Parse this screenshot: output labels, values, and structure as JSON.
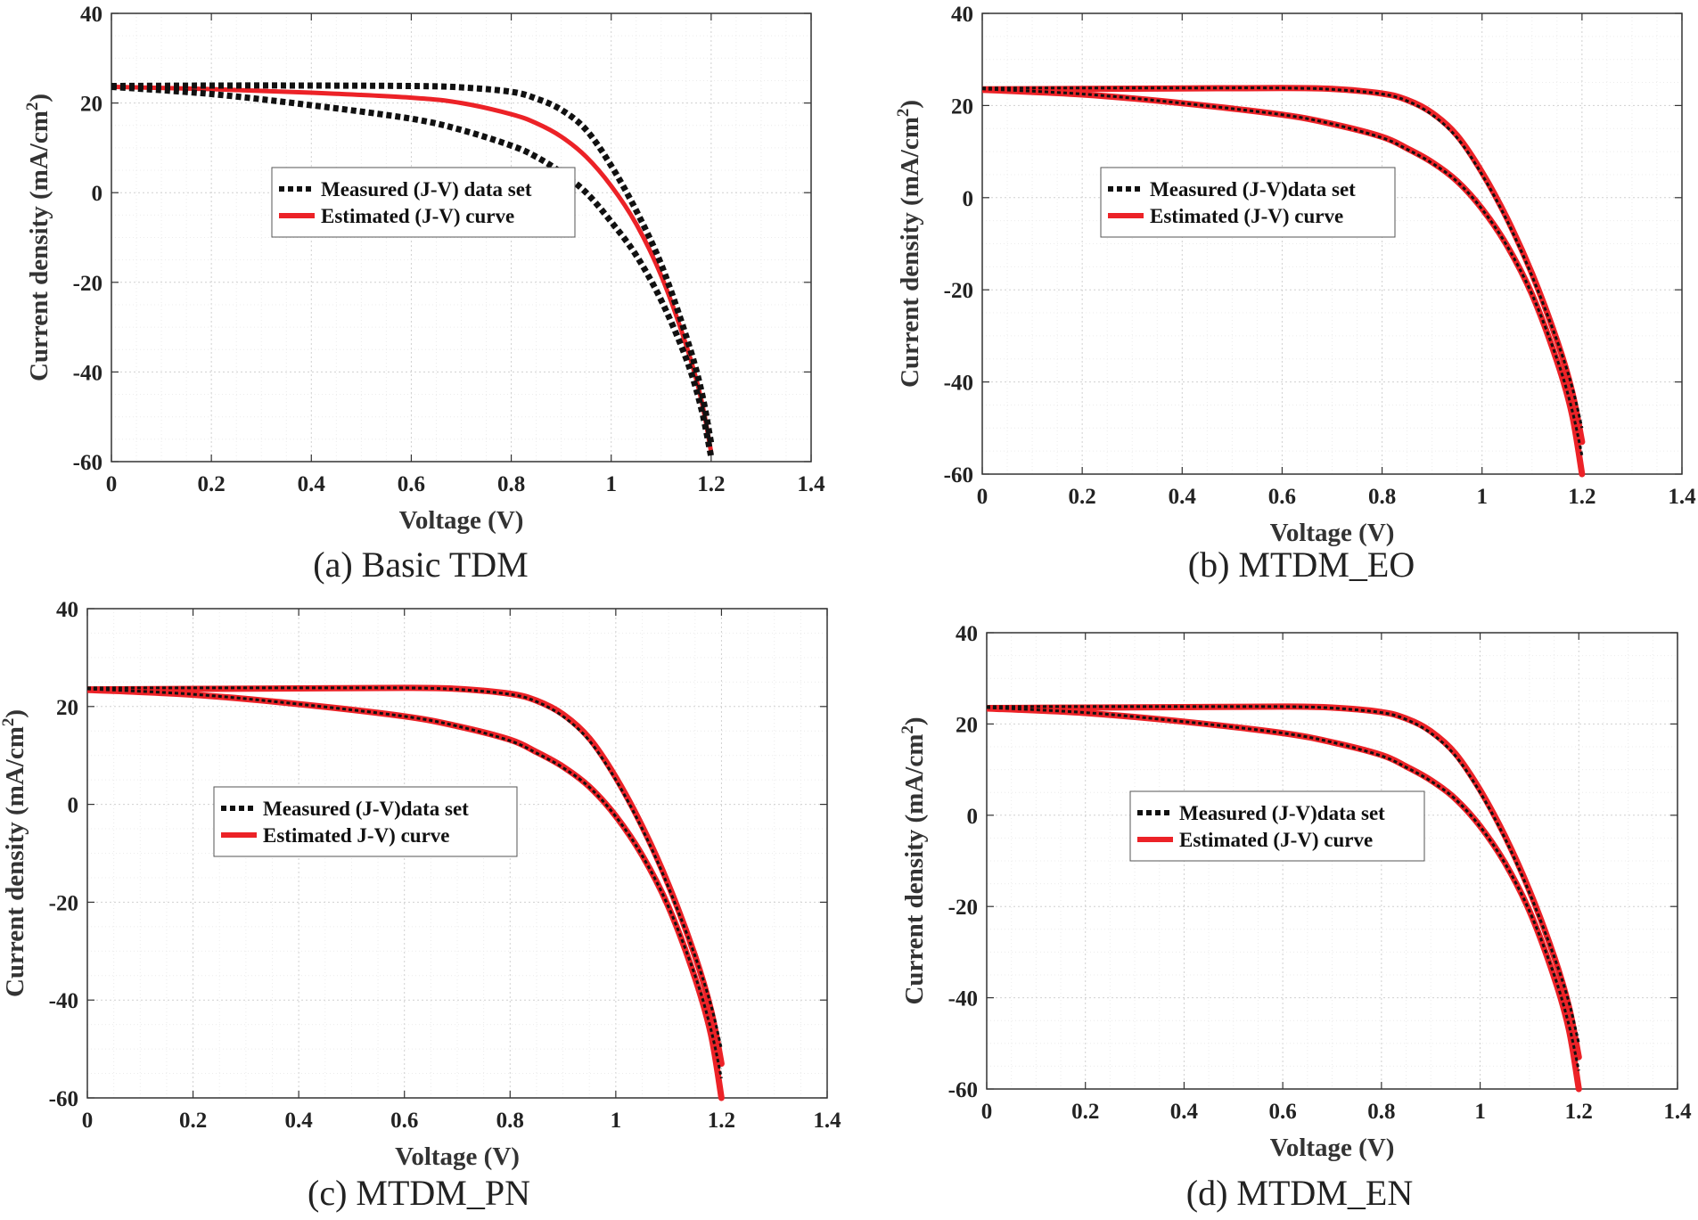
{
  "chart_data": [
    {
      "id": "a",
      "caption": "(a) Basic TDM",
      "type": "line",
      "xlabel": "Voltage (V)",
      "ylabel_main": "Current density (mA/cm",
      "ylabel_sup": "2",
      "ylabel_close": ")",
      "xlim": [
        0,
        1.4
      ],
      "ylim": [
        -60,
        40
      ],
      "xticks": [
        "0",
        "0.2",
        "0.4",
        "0.6",
        "0.8",
        "1",
        "1.2",
        "1.4"
      ],
      "yticks": [
        "40",
        "20",
        "0",
        "-20",
        "-40",
        "-60"
      ],
      "grid": true,
      "legend_position": "center",
      "legend": [
        {
          "label": "Measured (J-V) data set",
          "style": "dotted-black"
        },
        {
          "label": "Estimated (J-V) curve",
          "style": "solid-red"
        }
      ],
      "series": [
        {
          "name": "Measured upper",
          "style": "dotted-black",
          "x": [
            0,
            0.2,
            0.4,
            0.6,
            0.7,
            0.8,
            0.85,
            0.9,
            0.95,
            1.0,
            1.05,
            1.1,
            1.15,
            1.18,
            1.2
          ],
          "y": [
            23.8,
            23.9,
            23.9,
            23.8,
            23.5,
            22.5,
            21.0,
            18.5,
            14.0,
            6.0,
            -4.0,
            -16.0,
            -32.0,
            -44.0,
            -56.0
          ]
        },
        {
          "name": "Measured lower",
          "style": "dotted-black",
          "x": [
            0,
            0.2,
            0.4,
            0.6,
            0.7,
            0.8,
            0.85,
            0.9,
            0.95,
            1.0,
            1.05,
            1.1,
            1.15,
            1.18,
            1.2
          ],
          "y": [
            23.6,
            22.0,
            19.5,
            16.5,
            14.0,
            10.5,
            8.0,
            4.5,
            0.0,
            -6.5,
            -14.0,
            -24.0,
            -37.0,
            -48.0,
            -59.0
          ]
        },
        {
          "name": "Estimated",
          "style": "solid-red",
          "x": [
            0,
            0.2,
            0.4,
            0.6,
            0.7,
            0.8,
            0.85,
            0.9,
            0.95,
            1.0,
            1.05,
            1.1,
            1.15,
            1.18,
            1.2
          ],
          "y": [
            23.6,
            23.1,
            22.3,
            21.2,
            20.0,
            17.5,
            15.5,
            12.5,
            8.0,
            1.5,
            -7.0,
            -18.5,
            -34.0,
            -46.0,
            -58.0
          ]
        }
      ]
    },
    {
      "id": "b",
      "caption": "(b) MTDM_EO",
      "type": "line",
      "xlabel": "Voltage (V)",
      "ylabel_main": "Current density (mA/cm",
      "ylabel_sup": "2",
      "ylabel_close": ")",
      "xlim": [
        0,
        1.4
      ],
      "ylim": [
        -60,
        40
      ],
      "xticks": [
        "0",
        "0.2",
        "0.4",
        "0.6",
        "0.8",
        "1",
        "1.2",
        "1.4"
      ],
      "yticks": [
        "40",
        "20",
        "0",
        "-20",
        "-40",
        "-60"
      ],
      "grid": true,
      "legend_position": "center",
      "legend": [
        {
          "label": "Measured (J-V)data set",
          "style": "dotted-black"
        },
        {
          "label": "Estimated (J-V) curve",
          "style": "solid-red"
        }
      ],
      "series": [
        {
          "name": "Measured upper",
          "style": "dotted-black",
          "x": [
            0,
            0.2,
            0.4,
            0.6,
            0.7,
            0.8,
            0.85,
            0.9,
            0.95,
            1.0,
            1.05,
            1.1,
            1.15,
            1.18,
            1.2
          ],
          "y": [
            23.8,
            23.8,
            23.8,
            23.8,
            23.5,
            22.5,
            21.0,
            18.0,
            13.0,
            5.0,
            -5.0,
            -17.0,
            -31.0,
            -41.0,
            -50.0
          ]
        },
        {
          "name": "Measured lower",
          "style": "dotted-black",
          "x": [
            0,
            0.2,
            0.4,
            0.6,
            0.7,
            0.8,
            0.85,
            0.9,
            0.95,
            1.0,
            1.05,
            1.1,
            1.15,
            1.18,
            1.2
          ],
          "y": [
            23.6,
            22.5,
            20.5,
            18.0,
            16.0,
            13.0,
            10.5,
            7.5,
            3.5,
            -2.5,
            -10.5,
            -21.0,
            -35.0,
            -46.0,
            -56.0
          ]
        },
        {
          "name": "Estimated upper",
          "style": "solid-red",
          "x": [
            0,
            0.2,
            0.4,
            0.6,
            0.7,
            0.8,
            0.85,
            0.9,
            0.95,
            1.0,
            1.05,
            1.1,
            1.15,
            1.18,
            1.2
          ],
          "y": [
            23.5,
            23.6,
            23.7,
            23.8,
            23.6,
            22.6,
            21.2,
            18.4,
            13.5,
            5.5,
            -4.5,
            -16.5,
            -31.0,
            -42.0,
            -53.0
          ]
        },
        {
          "name": "Estimated lower",
          "style": "solid-red",
          "x": [
            0,
            0.2,
            0.4,
            0.6,
            0.7,
            0.8,
            0.85,
            0.9,
            0.95,
            1.0,
            1.05,
            1.1,
            1.15,
            1.18,
            1.2
          ],
          "y": [
            23.4,
            22.4,
            20.5,
            18.0,
            16.0,
            13.2,
            10.7,
            7.7,
            3.6,
            -2.4,
            -10.4,
            -21.0,
            -35.5,
            -47.0,
            -60.0
          ]
        }
      ]
    },
    {
      "id": "c",
      "caption": "(c) MTDM_PN",
      "type": "line",
      "xlabel": "Voltage (V)",
      "ylabel_main": "Current density (mA/cm",
      "ylabel_sup": "2",
      "ylabel_close": ")",
      "xlim": [
        0,
        1.4
      ],
      "ylim": [
        -60,
        40
      ],
      "xticks": [
        "0",
        "0.2",
        "0.4",
        "0.6",
        "0.8",
        "1",
        "1.2",
        "1.4"
      ],
      "yticks": [
        "40",
        "20",
        "0",
        "-20",
        "-40",
        "-60"
      ],
      "grid": true,
      "legend_position": "center",
      "legend": [
        {
          "label": "Measured (J-V)data set",
          "style": "dotted-black"
        },
        {
          "label": "Estimated J-V) curve",
          "style": "solid-red"
        }
      ],
      "series": [
        {
          "name": "Measured upper",
          "style": "dotted-black",
          "x": [
            0,
            0.2,
            0.4,
            0.6,
            0.7,
            0.8,
            0.85,
            0.9,
            0.95,
            1.0,
            1.05,
            1.1,
            1.15,
            1.18,
            1.2
          ],
          "y": [
            23.8,
            23.8,
            23.8,
            23.8,
            23.5,
            22.5,
            21.0,
            18.0,
            13.0,
            5.0,
            -5.0,
            -17.0,
            -31.0,
            -41.0,
            -50.0
          ]
        },
        {
          "name": "Measured lower",
          "style": "dotted-black",
          "x": [
            0,
            0.2,
            0.4,
            0.6,
            0.7,
            0.8,
            0.85,
            0.9,
            0.95,
            1.0,
            1.05,
            1.1,
            1.15,
            1.18,
            1.2
          ],
          "y": [
            23.6,
            22.5,
            20.5,
            18.0,
            16.0,
            13.0,
            10.5,
            7.5,
            3.5,
            -2.5,
            -10.5,
            -21.0,
            -35.0,
            -46.0,
            -56.0
          ]
        },
        {
          "name": "Estimated upper",
          "style": "solid-red",
          "x": [
            0,
            0.2,
            0.4,
            0.6,
            0.7,
            0.8,
            0.85,
            0.9,
            0.95,
            1.0,
            1.05,
            1.1,
            1.15,
            1.18,
            1.2
          ],
          "y": [
            23.5,
            23.6,
            23.7,
            23.8,
            23.6,
            22.6,
            21.2,
            18.4,
            13.5,
            5.5,
            -4.5,
            -16.5,
            -31.0,
            -42.0,
            -53.0
          ]
        },
        {
          "name": "Estimated lower",
          "style": "solid-red",
          "x": [
            0,
            0.2,
            0.4,
            0.6,
            0.7,
            0.8,
            0.85,
            0.9,
            0.95,
            1.0,
            1.05,
            1.1,
            1.15,
            1.18,
            1.2
          ],
          "y": [
            23.4,
            22.4,
            20.5,
            18.0,
            16.0,
            13.2,
            10.7,
            7.7,
            3.6,
            -2.4,
            -10.4,
            -21.0,
            -35.5,
            -47.0,
            -60.0
          ]
        }
      ]
    },
    {
      "id": "d",
      "caption": "(d) MTDM_EN",
      "type": "line",
      "xlabel": "Voltage (V)",
      "ylabel_main": "Current density (mA/cm",
      "ylabel_sup": "2",
      "ylabel_close": ")",
      "xlim": [
        0,
        1.4
      ],
      "ylim": [
        -60,
        40
      ],
      "xticks": [
        "0",
        "0.2",
        "0.4",
        "0.6",
        "0.8",
        "1",
        "1.2",
        "1.4"
      ],
      "yticks": [
        "40",
        "20",
        "0",
        "-20",
        "-40",
        "-60"
      ],
      "grid": true,
      "legend_position": "center",
      "legend": [
        {
          "label": "Measured (J-V)data set",
          "style": "dotted-black"
        },
        {
          "label": "Estimated (J-V) curve",
          "style": "solid-red"
        }
      ],
      "series": [
        {
          "name": "Measured upper",
          "style": "dotted-black",
          "x": [
            0,
            0.2,
            0.4,
            0.6,
            0.7,
            0.8,
            0.85,
            0.9,
            0.95,
            1.0,
            1.05,
            1.1,
            1.15,
            1.18,
            1.2
          ],
          "y": [
            23.8,
            23.8,
            23.8,
            23.8,
            23.5,
            22.5,
            21.0,
            18.0,
            13.0,
            5.0,
            -5.0,
            -17.0,
            -31.0,
            -41.0,
            -50.0
          ]
        },
        {
          "name": "Measured lower",
          "style": "dotted-black",
          "x": [
            0,
            0.2,
            0.4,
            0.6,
            0.7,
            0.8,
            0.85,
            0.9,
            0.95,
            1.0,
            1.05,
            1.1,
            1.15,
            1.18,
            1.2
          ],
          "y": [
            23.6,
            22.5,
            20.5,
            18.0,
            16.0,
            13.0,
            10.5,
            7.5,
            3.5,
            -2.5,
            -10.5,
            -21.0,
            -35.0,
            -46.0,
            -56.0
          ]
        },
        {
          "name": "Estimated upper",
          "style": "solid-red",
          "x": [
            0,
            0.2,
            0.4,
            0.6,
            0.7,
            0.8,
            0.85,
            0.9,
            0.95,
            1.0,
            1.05,
            1.1,
            1.15,
            1.18,
            1.2
          ],
          "y": [
            23.5,
            23.6,
            23.7,
            23.8,
            23.6,
            22.6,
            21.2,
            18.4,
            13.5,
            5.5,
            -4.5,
            -16.5,
            -31.0,
            -42.0,
            -53.0
          ]
        },
        {
          "name": "Estimated lower",
          "style": "solid-red",
          "x": [
            0,
            0.2,
            0.4,
            0.6,
            0.7,
            0.8,
            0.85,
            0.9,
            0.95,
            1.0,
            1.05,
            1.1,
            1.15,
            1.18,
            1.2
          ],
          "y": [
            23.4,
            22.4,
            20.5,
            18.0,
            16.0,
            13.2,
            10.7,
            7.7,
            3.6,
            -2.4,
            -10.4,
            -21.0,
            -35.5,
            -47.0,
            -60.0
          ]
        }
      ]
    }
  ]
}
